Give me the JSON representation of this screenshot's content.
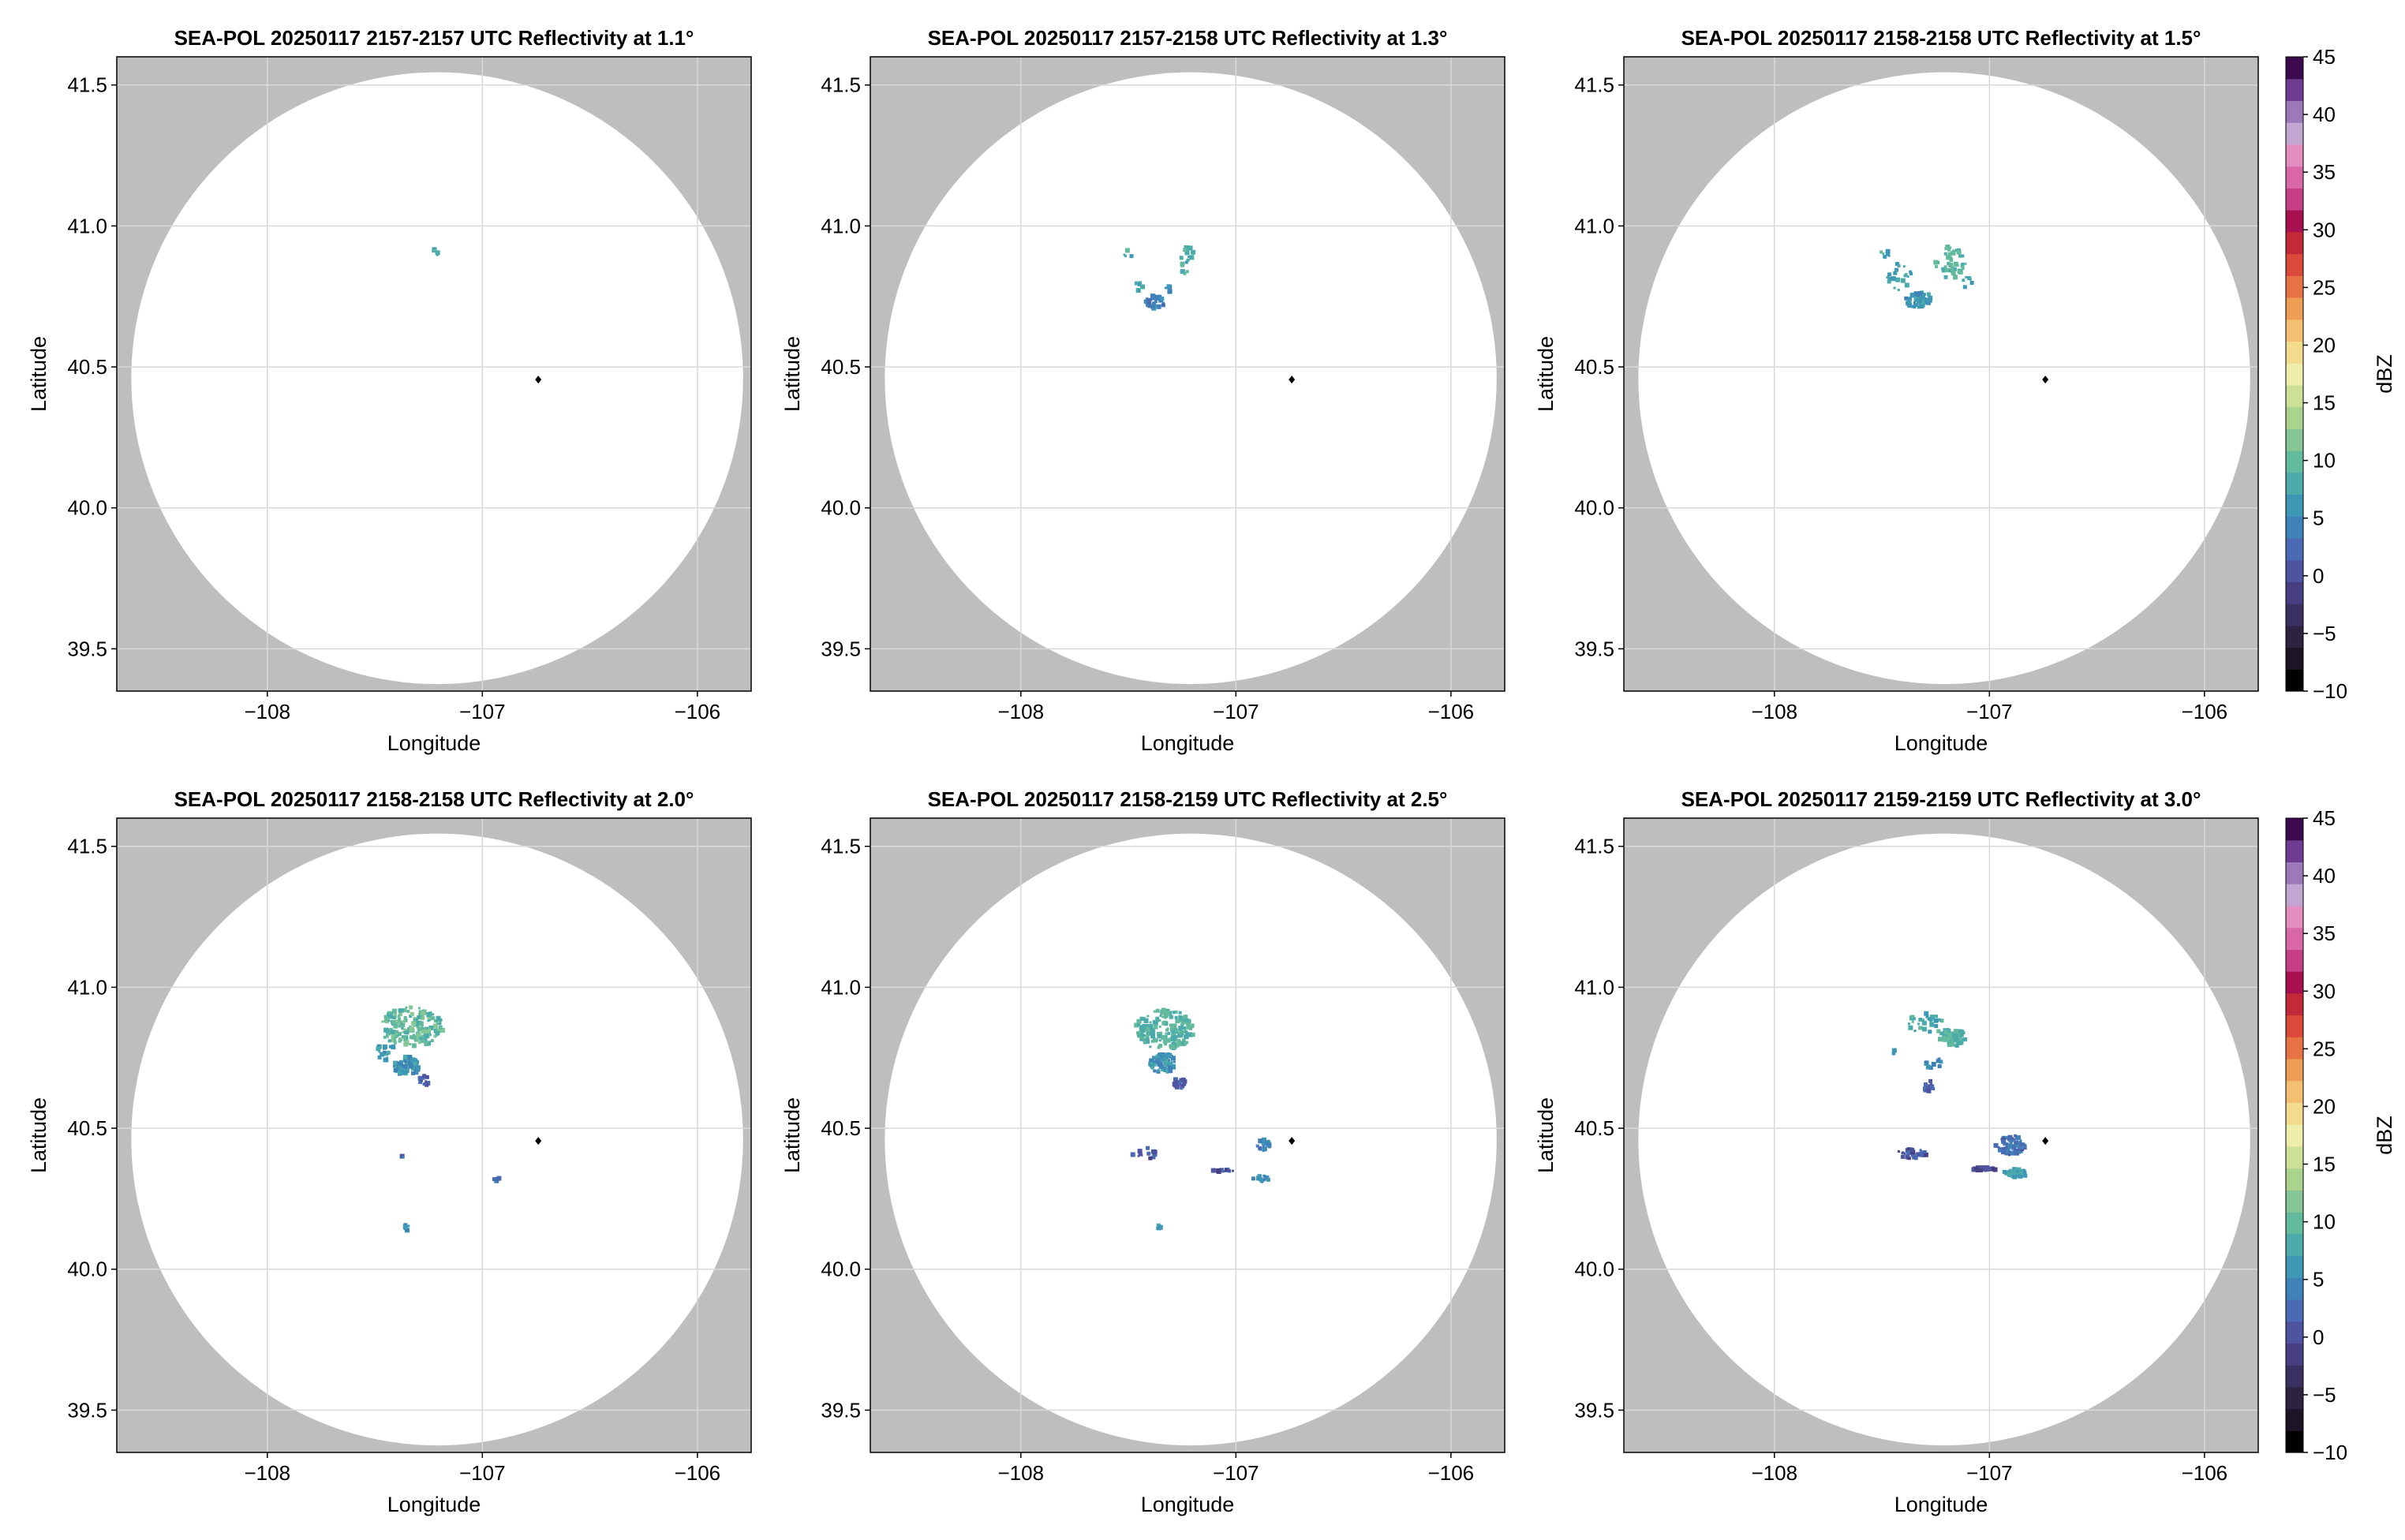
{
  "figure": {
    "background": "#ffffff",
    "mask_color": "#bebebe",
    "grid_color": "#d9d9d9"
  },
  "chart_data": [
    {
      "type": "heatmap",
      "title": "SEA-POL 20250117 2157-2157 UTC Reflectivity at 1.1°",
      "xlabel": "Longitude",
      "ylabel": "Latitude",
      "xlim": [
        -108.7,
        -105.75
      ],
      "ylim": [
        39.35,
        41.6
      ],
      "xticks": [
        -108,
        -107,
        -106
      ],
      "xtick_labels": [
        "−108",
        "−107",
        "−106"
      ],
      "yticks": [
        39.5,
        40.0,
        40.5,
        41.0,
        41.5
      ],
      "ytick_labels": [
        "39.5",
        "40.0",
        "40.5",
        "41.0",
        "41.5"
      ],
      "grid": true,
      "radar_site": {
        "lon": -106.74,
        "lat": 40.455
      },
      "coverage": {
        "center_lon": -107.21,
        "center_lat": 40.46,
        "radius_lat": 1.085
      },
      "echoes": [
        {
          "lon": -107.22,
          "lat": 40.92,
          "dbz": 14,
          "rlon": 0.01,
          "rlat": 0.008,
          "n": 3
        },
        {
          "lon": -107.21,
          "lat": 40.9,
          "dbz": 13,
          "rlon": 0.008,
          "rlat": 0.006,
          "n": 2
        }
      ]
    },
    {
      "type": "heatmap",
      "title": "SEA-POL 20250117 2157-2158 UTC Reflectivity at 1.3°",
      "xlabel": "Longitude",
      "ylabel": "Latitude",
      "xlim": [
        -108.7,
        -105.75
      ],
      "ylim": [
        39.35,
        41.6
      ],
      "xticks": [
        -108,
        -107,
        -106
      ],
      "xtick_labels": [
        "−108",
        "−107",
        "−106"
      ],
      "yticks": [
        39.5,
        40.0,
        40.5,
        41.0,
        41.5
      ],
      "ytick_labels": [
        "39.5",
        "40.0",
        "40.5",
        "41.0",
        "41.5"
      ],
      "grid": true,
      "radar_site": {
        "lon": -106.74,
        "lat": 40.455
      },
      "coverage": {
        "center_lon": -107.21,
        "center_lat": 40.46,
        "radius_lat": 1.085
      },
      "echoes": [
        {
          "lon": -107.37,
          "lat": 40.73,
          "dbz": 9,
          "rlon": 0.05,
          "rlat": 0.025,
          "n": 35
        },
        {
          "lon": -107.23,
          "lat": 40.88,
          "dbz": 14,
          "rlon": 0.04,
          "rlat": 0.05,
          "n": 18
        },
        {
          "lon": -107.5,
          "lat": 40.9,
          "dbz": 14,
          "rlon": 0.02,
          "rlat": 0.015,
          "n": 4
        },
        {
          "lon": -107.45,
          "lat": 40.78,
          "dbz": 12,
          "rlon": 0.03,
          "rlat": 0.02,
          "n": 6
        },
        {
          "lon": -107.31,
          "lat": 40.78,
          "dbz": 11,
          "rlon": 0.02,
          "rlat": 0.02,
          "n": 5
        }
      ]
    },
    {
      "type": "heatmap",
      "title": "SEA-POL 20250117 2158-2158 UTC Reflectivity at 1.5°",
      "xlabel": "Longitude",
      "ylabel": "Latitude",
      "xlim": [
        -108.7,
        -105.75
      ],
      "ylim": [
        39.35,
        41.6
      ],
      "xticks": [
        -108,
        -107,
        -106
      ],
      "xtick_labels": [
        "−108",
        "−107",
        "−106"
      ],
      "yticks": [
        39.5,
        40.0,
        40.5,
        41.0,
        41.5
      ],
      "ytick_labels": [
        "39.5",
        "40.0",
        "40.5",
        "41.0",
        "41.5"
      ],
      "grid": true,
      "radar_site": {
        "lon": -106.74,
        "lat": 40.455
      },
      "coverage": {
        "center_lon": -107.21,
        "center_lat": 40.46,
        "radius_lat": 1.085
      },
      "echoes": [
        {
          "lon": -107.33,
          "lat": 40.74,
          "dbz": 11,
          "rlon": 0.06,
          "rlat": 0.03,
          "n": 55
        },
        {
          "lon": -107.18,
          "lat": 40.87,
          "dbz": 15,
          "rlon": 0.07,
          "rlat": 0.06,
          "n": 45
        },
        {
          "lon": -107.42,
          "lat": 40.82,
          "dbz": 13,
          "rlon": 0.06,
          "rlat": 0.05,
          "n": 22
        },
        {
          "lon": -107.48,
          "lat": 40.9,
          "dbz": 14,
          "rlon": 0.03,
          "rlat": 0.02,
          "n": 6
        },
        {
          "lon": -107.1,
          "lat": 40.8,
          "dbz": 13,
          "rlon": 0.03,
          "rlat": 0.02,
          "n": 8
        }
      ]
    },
    {
      "type": "heatmap",
      "title": "SEA-POL 20250117 2158-2158 UTC Reflectivity at 2.0°",
      "xlabel": "Longitude",
      "ylabel": "Latitude",
      "xlim": [
        -108.7,
        -105.75
      ],
      "ylim": [
        39.35,
        41.6
      ],
      "xticks": [
        -108,
        -107,
        -106
      ],
      "xtick_labels": [
        "−108",
        "−107",
        "−106"
      ],
      "yticks": [
        39.5,
        40.0,
        40.5,
        41.0,
        41.5
      ],
      "ytick_labels": [
        "39.5",
        "40.0",
        "40.5",
        "41.0",
        "41.5"
      ],
      "grid": true,
      "radar_site": {
        "lon": -106.74,
        "lat": 40.455
      },
      "coverage": {
        "center_lon": -107.21,
        "center_lat": 40.46,
        "radius_lat": 1.085
      },
      "echoes": [
        {
          "lon": -107.33,
          "lat": 40.86,
          "dbz": 16,
          "rlon": 0.15,
          "rlat": 0.07,
          "n": 200
        },
        {
          "lon": -107.35,
          "lat": 40.72,
          "dbz": 11,
          "rlon": 0.06,
          "rlat": 0.035,
          "n": 80
        },
        {
          "lon": -107.27,
          "lat": 40.67,
          "dbz": 6,
          "rlon": 0.025,
          "rlat": 0.02,
          "n": 15
        },
        {
          "lon": -107.45,
          "lat": 40.77,
          "dbz": 12,
          "rlon": 0.05,
          "rlat": 0.03,
          "n": 20
        },
        {
          "lon": -107.35,
          "lat": 40.15,
          "dbz": 10,
          "rlon": 0.01,
          "rlat": 0.012,
          "n": 6
        },
        {
          "lon": -106.93,
          "lat": 40.32,
          "dbz": 7,
          "rlon": 0.015,
          "rlat": 0.008,
          "n": 6
        },
        {
          "lon": -107.37,
          "lat": 40.4,
          "dbz": 6,
          "rlon": 0.005,
          "rlat": 0.005,
          "n": 2
        }
      ]
    },
    {
      "type": "heatmap",
      "title": "SEA-POL 20250117 2158-2159 UTC Reflectivity at 2.5°",
      "xlabel": "Longitude",
      "ylabel": "Latitude",
      "xlim": [
        -108.7,
        -105.75
      ],
      "ylim": [
        39.35,
        41.6
      ],
      "xticks": [
        -108,
        -107,
        -106
      ],
      "xtick_labels": [
        "−108",
        "−107",
        "−106"
      ],
      "yticks": [
        39.5,
        40.0,
        40.5,
        41.0,
        41.5
      ],
      "ytick_labels": [
        "39.5",
        "40.0",
        "40.5",
        "41.0",
        "41.5"
      ],
      "grid": true,
      "radar_site": {
        "lon": -106.74,
        "lat": 40.455
      },
      "coverage": {
        "center_lon": -107.21,
        "center_lat": 40.46,
        "radius_lat": 1.085
      },
      "echoes": [
        {
          "lon": -107.33,
          "lat": 40.85,
          "dbz": 15,
          "rlon": 0.14,
          "rlat": 0.07,
          "n": 180
        },
        {
          "lon": -107.34,
          "lat": 40.73,
          "dbz": 11,
          "rlon": 0.06,
          "rlat": 0.035,
          "n": 70
        },
        {
          "lon": -107.26,
          "lat": 40.66,
          "dbz": 5,
          "rlon": 0.03,
          "rlat": 0.02,
          "n": 20
        },
        {
          "lon": -106.87,
          "lat": 40.44,
          "dbz": 9,
          "rlon": 0.03,
          "rlat": 0.02,
          "n": 25
        },
        {
          "lon": -106.88,
          "lat": 40.32,
          "dbz": 10,
          "rlon": 0.04,
          "rlat": 0.012,
          "n": 15
        },
        {
          "lon": -107.06,
          "lat": 40.35,
          "dbz": 4,
          "rlon": 0.06,
          "rlat": 0.004,
          "n": 14
        },
        {
          "lon": -107.42,
          "lat": 40.41,
          "dbz": 4,
          "rlon": 0.06,
          "rlat": 0.02,
          "n": 12
        },
        {
          "lon": -107.36,
          "lat": 40.15,
          "dbz": 11,
          "rlon": 0.012,
          "rlat": 0.01,
          "n": 6
        }
      ]
    },
    {
      "type": "heatmap",
      "title": "SEA-POL 20250117 2159-2159 UTC Reflectivity at 3.0°",
      "xlabel": "Longitude",
      "ylabel": "Latitude",
      "xlim": [
        -108.7,
        -105.75
      ],
      "ylim": [
        39.35,
        41.6
      ],
      "xticks": [
        -108,
        -107,
        -106
      ],
      "xtick_labels": [
        "−108",
        "−107",
        "−106"
      ],
      "yticks": [
        39.5,
        40.0,
        40.5,
        41.0,
        41.5
      ],
      "ytick_labels": [
        "39.5",
        "40.0",
        "40.5",
        "41.0",
        "41.5"
      ],
      "grid": true,
      "radar_site": {
        "lon": -106.74,
        "lat": 40.455
      },
      "coverage": {
        "center_lon": -107.21,
        "center_lat": 40.46,
        "radius_lat": 1.085
      },
      "echoes": [
        {
          "lon": -107.17,
          "lat": 40.82,
          "dbz": 15,
          "rlon": 0.06,
          "rlat": 0.035,
          "n": 60
        },
        {
          "lon": -107.3,
          "lat": 40.87,
          "dbz": 14,
          "rlon": 0.09,
          "rlat": 0.04,
          "n": 30
        },
        {
          "lon": -107.28,
          "lat": 40.65,
          "dbz": 5,
          "rlon": 0.025,
          "rlat": 0.02,
          "n": 20
        },
        {
          "lon": -106.9,
          "lat": 40.44,
          "dbz": 7,
          "rlon": 0.07,
          "rlat": 0.035,
          "n": 80
        },
        {
          "lon": -106.88,
          "lat": 40.34,
          "dbz": 13,
          "rlon": 0.06,
          "rlat": 0.015,
          "n": 40
        },
        {
          "lon": -107.02,
          "lat": 40.355,
          "dbz": 3,
          "rlon": 0.06,
          "rlat": 0.006,
          "n": 35
        },
        {
          "lon": -107.36,
          "lat": 40.41,
          "dbz": 4,
          "rlon": 0.07,
          "rlat": 0.02,
          "n": 30
        },
        {
          "lon": -107.26,
          "lat": 40.73,
          "dbz": 10,
          "rlon": 0.04,
          "rlat": 0.02,
          "n": 10
        },
        {
          "lon": -107.45,
          "lat": 40.77,
          "dbz": 12,
          "rlon": 0.01,
          "rlat": 0.01,
          "n": 3
        }
      ]
    }
  ],
  "colorbar": {
    "label": "dBZ",
    "min": -10,
    "max": 45,
    "step": 2.5,
    "ticks": [
      -10,
      -5,
      0,
      5,
      10,
      15,
      20,
      25,
      30,
      35,
      40,
      45
    ],
    "tick_labels": [
      "−10",
      "−5",
      "0",
      "5",
      "10",
      "15",
      "20",
      "25",
      "30",
      "35",
      "40",
      "45"
    ],
    "colors": [
      "#000000",
      "#1c1526",
      "#2b2340",
      "#3a3160",
      "#473f82",
      "#4e54a0",
      "#4a6bb3",
      "#3f82b8",
      "#3e98b5",
      "#4aabaa",
      "#64ba9d",
      "#86c795",
      "#aad48e",
      "#cde098",
      "#eeedaa",
      "#f4dc8e",
      "#f2c070",
      "#ef9e55",
      "#e87445",
      "#d94a3a",
      "#c22a3a",
      "#a8114f",
      "#c43f86",
      "#d868a7",
      "#e38ec0",
      "#c3a5d1",
      "#9c79ba",
      "#6f3c93",
      "#3d0a4f"
    ]
  }
}
